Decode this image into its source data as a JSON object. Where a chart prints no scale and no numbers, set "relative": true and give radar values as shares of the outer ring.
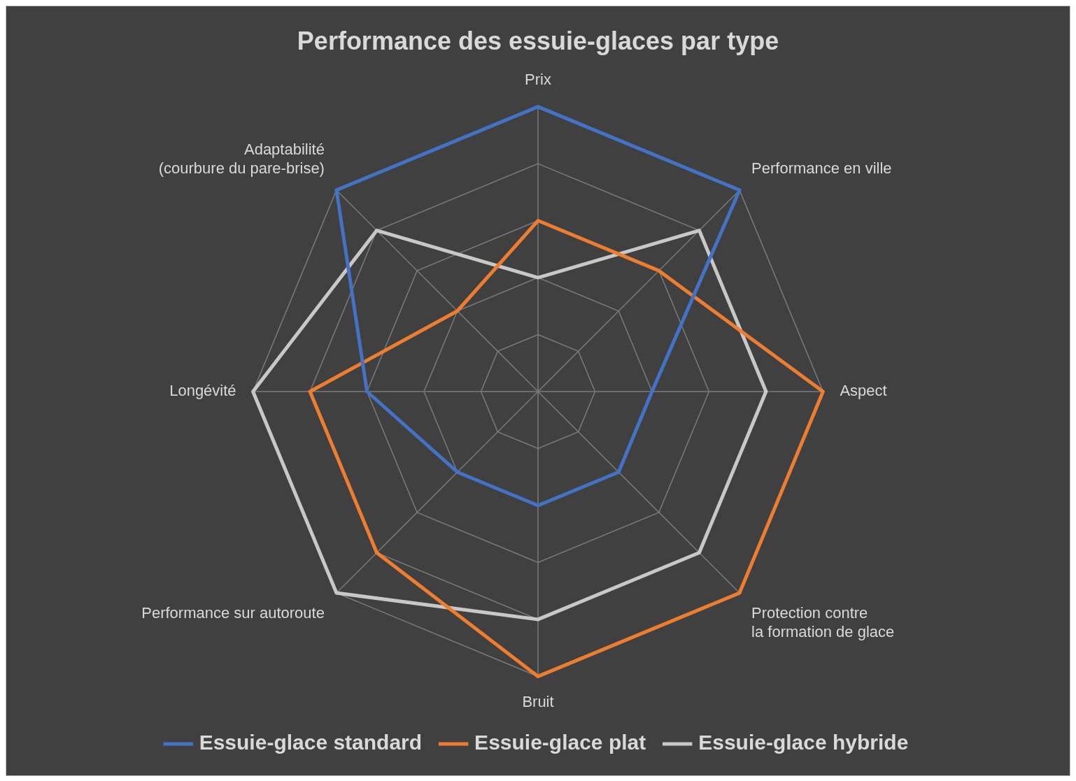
{
  "chart_data": {
    "type": "radar",
    "title": "Performance des essuie-glaces par type",
    "relative": true,
    "categories": [
      "Prix",
      "Performance en ville",
      "Aspect",
      "Protection contre\nla formation de glace",
      "Bruit",
      "Performance sur autoroute",
      "Longévité",
      "Adaptabilité\n(courbure du pare-brise)"
    ],
    "series": [
      {
        "name": "Essuie-glace standard",
        "color": "#4472c4",
        "values": [
          1.0,
          1.0,
          0.4,
          0.4,
          0.4,
          0.4,
          0.6,
          1.0
        ]
      },
      {
        "name": "Essuie-glace plat",
        "color": "#ed7d31",
        "values": [
          0.6,
          0.6,
          1.0,
          1.0,
          1.0,
          0.8,
          0.8,
          0.4
        ]
      },
      {
        "name": "Essuie-glace hybride",
        "color": "#c8c8c8",
        "values": [
          0.4,
          0.8,
          0.8,
          0.8,
          0.8,
          1.0,
          1.0,
          0.8
        ]
      }
    ],
    "legend": "bottom",
    "grid": true,
    "marker": "none"
  }
}
